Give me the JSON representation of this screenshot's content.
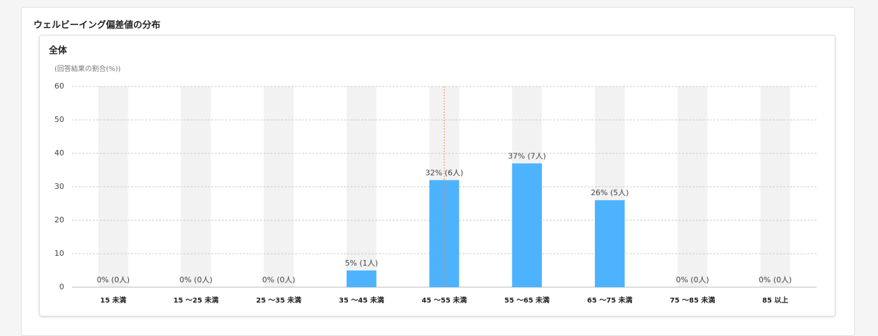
{
  "page_title": "ウェルビーイング偏差値の分布",
  "chart_data": {
    "type": "bar",
    "title": "全体",
    "y_label": "(回答結果の割合(%))",
    "categories": [
      "15 未満",
      "15 ～25 未満",
      "25 ～35 未満",
      "35 ～45 未満",
      "45 ～55 未満",
      "55 ～65 未満",
      "65 ～75 未満",
      "75 ～85 未満",
      "85 以上"
    ],
    "values": [
      0,
      0,
      0,
      5,
      32,
      37,
      26,
      0,
      0
    ],
    "value_labels": [
      "0% (0人)",
      "0% (0人)",
      "0% (0人)",
      "5% (1人)",
      "32% (6人)",
      "37% (7人)",
      "26% (5人)",
      "0% (0人)",
      "0% (0人)"
    ],
    "color": "#4db3ff",
    "background_color": "#f2f2f2",
    "reference_line_color": "#f08a3c",
    "ylim": [
      0,
      60
    ],
    "yticks": [
      0,
      10,
      20,
      30,
      40,
      50,
      60
    ],
    "grid": true
  }
}
